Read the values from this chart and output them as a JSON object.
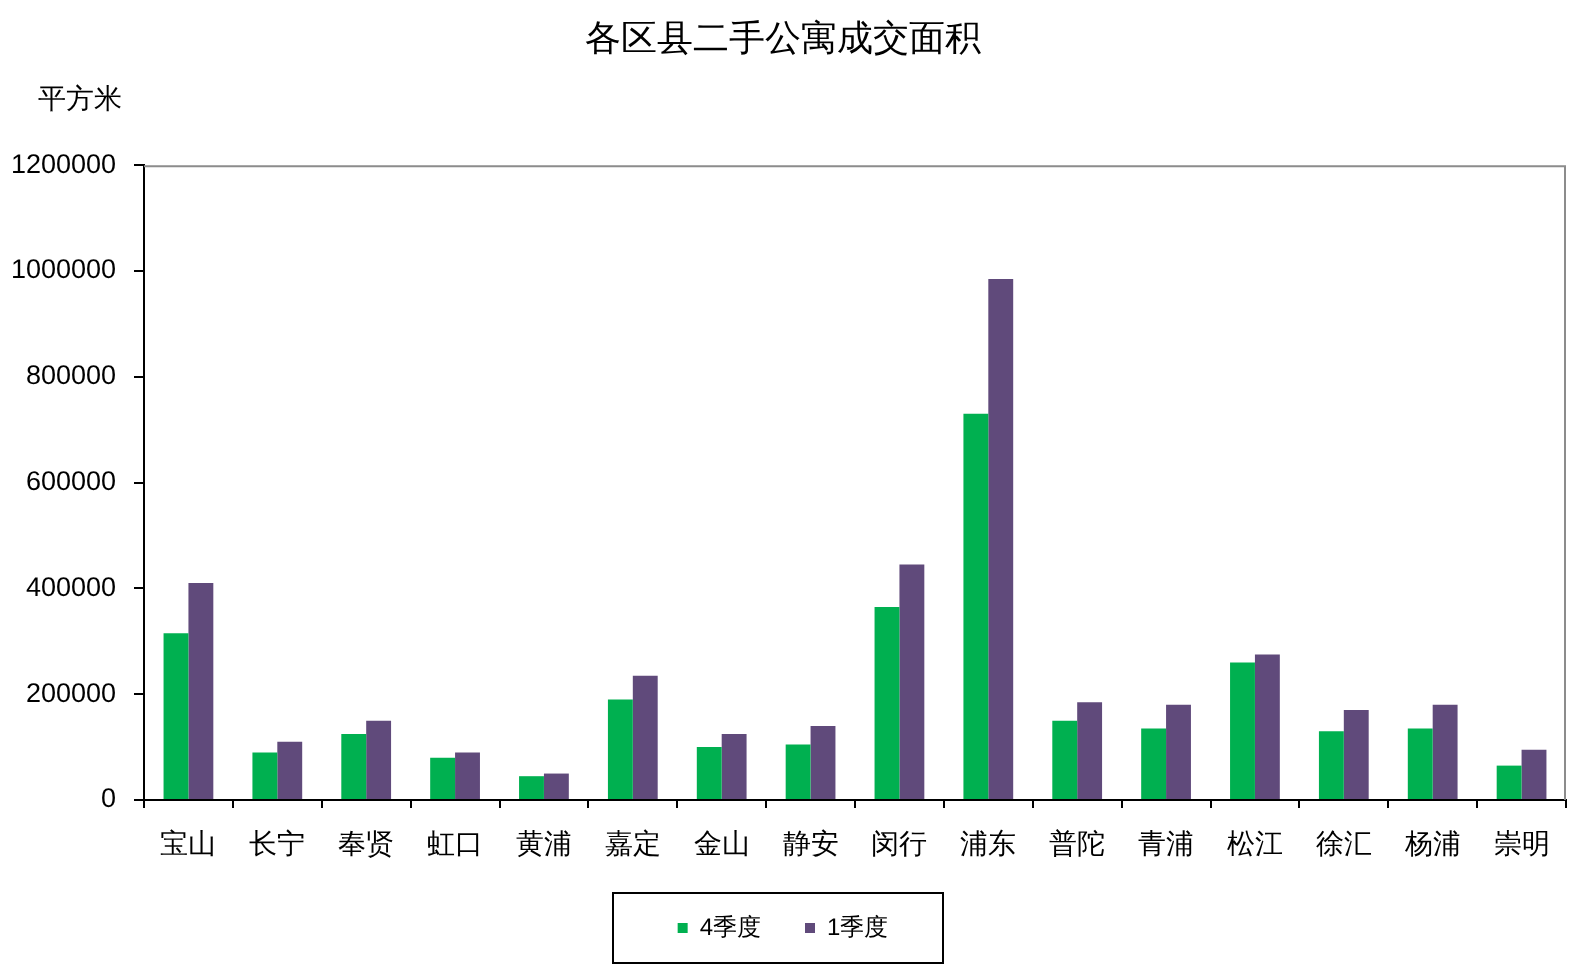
{
  "chart_data": {
    "type": "bar",
    "title": "各区县二手公寓成交面积",
    "ylabel": "平方米",
    "categories": [
      "宝山",
      "长宁",
      "奉贤",
      "虹口",
      "黄浦",
      "嘉定",
      "金山",
      "静安",
      "闵行",
      "浦东",
      "普陀",
      "青浦",
      "松江",
      "徐汇",
      "杨浦",
      "崇明"
    ],
    "series": [
      {
        "name": "4季度",
        "color": "#00b050",
        "values": [
          315000,
          90000,
          125000,
          80000,
          45000,
          190000,
          100000,
          105000,
          365000,
          730000,
          150000,
          135000,
          260000,
          130000,
          135000,
          65000
        ]
      },
      {
        "name": "1季度",
        "color": "#604a7b",
        "values": [
          410000,
          110000,
          150000,
          90000,
          50000,
          235000,
          125000,
          140000,
          445000,
          985000,
          185000,
          180000,
          275000,
          170000,
          180000,
          95000
        ]
      }
    ],
    "ylim": [
      0,
      1200000
    ],
    "yticks": [
      0,
      200000,
      400000,
      600000,
      800000,
      1000000,
      1200000
    ],
    "legend": "bottom"
  }
}
